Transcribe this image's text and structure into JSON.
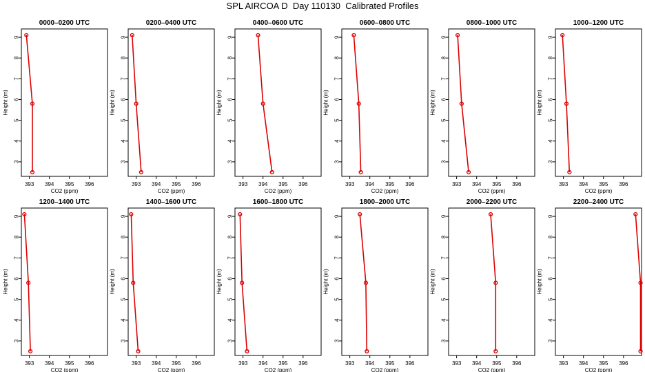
{
  "figure": {
    "title": "SPL AIRCOA D  Day 110130  Calibrated Profiles"
  },
  "colors": {
    "series": "#dd0000",
    "axis": "#000000"
  },
  "chart_data": [
    {
      "type": "line",
      "title": "0000–0200 UTC",
      "xlabel": "CO2 (ppm)",
      "ylabel": "Height (m)",
      "xlim": [
        392.6,
        396.9
      ],
      "ylim": [
        2.3,
        9.4
      ],
      "xticks": [
        393,
        394,
        395,
        396
      ],
      "yticks": [
        3,
        4,
        5,
        6,
        7,
        8,
        9
      ],
      "grid": false,
      "x": [
        392.85,
        393.15,
        393.15
      ],
      "y": [
        9.1,
        5.8,
        2.5
      ]
    },
    {
      "type": "line",
      "title": "0200–0400 UTC",
      "xlabel": "CO2 (ppm)",
      "ylabel": "Height (m)",
      "xlim": [
        392.6,
        396.9
      ],
      "ylim": [
        2.3,
        9.4
      ],
      "xticks": [
        393,
        394,
        395,
        396
      ],
      "yticks": [
        3,
        4,
        5,
        6,
        7,
        8,
        9
      ],
      "grid": false,
      "x": [
        392.8,
        393.0,
        393.25
      ],
      "y": [
        9.1,
        5.8,
        2.5
      ]
    },
    {
      "type": "line",
      "title": "0400–0600 UTC",
      "xlabel": "CO2 (ppm)",
      "ylabel": "Height (m)",
      "xlim": [
        392.6,
        396.9
      ],
      "ylim": [
        2.3,
        9.4
      ],
      "xticks": [
        393,
        394,
        395,
        396
      ],
      "yticks": [
        3,
        4,
        5,
        6,
        7,
        8,
        9
      ],
      "grid": false,
      "x": [
        393.75,
        394.0,
        394.45
      ],
      "y": [
        9.1,
        5.8,
        2.5
      ]
    },
    {
      "type": "line",
      "title": "0600–0800 UTC",
      "xlabel": "CO2 (ppm)",
      "ylabel": "Height (m)",
      "xlim": [
        392.6,
        396.9
      ],
      "ylim": [
        2.3,
        9.4
      ],
      "xticks": [
        393,
        394,
        395,
        396
      ],
      "yticks": [
        3,
        4,
        5,
        6,
        7,
        8,
        9
      ],
      "grid": false,
      "x": [
        393.2,
        393.45,
        393.55
      ],
      "y": [
        9.1,
        5.8,
        2.5
      ]
    },
    {
      "type": "line",
      "title": "0800–1000 UTC",
      "xlabel": "CO2 (ppm)",
      "ylabel": "Height (m)",
      "xlim": [
        392.6,
        396.9
      ],
      "ylim": [
        2.3,
        9.4
      ],
      "xticks": [
        393,
        394,
        395,
        396
      ],
      "yticks": [
        3,
        4,
        5,
        6,
        7,
        8,
        9
      ],
      "grid": false,
      "x": [
        393.05,
        393.25,
        393.6
      ],
      "y": [
        9.1,
        5.8,
        2.5
      ]
    },
    {
      "type": "line",
      "title": "1000–1200 UTC",
      "xlabel": "CO2 (ppm)",
      "ylabel": "Height (m)",
      "xlim": [
        392.6,
        396.9
      ],
      "ylim": [
        2.3,
        9.4
      ],
      "xticks": [
        393,
        394,
        395,
        396
      ],
      "yticks": [
        3,
        4,
        5,
        6,
        7,
        8,
        9
      ],
      "grid": false,
      "x": [
        392.95,
        393.15,
        393.3
      ],
      "y": [
        9.1,
        5.8,
        2.5
      ]
    },
    {
      "type": "line",
      "title": "1200–1400 UTC",
      "xlabel": "CO2 (ppm)",
      "ylabel": "Height (m)",
      "xlim": [
        392.6,
        396.9
      ],
      "ylim": [
        2.3,
        9.4
      ],
      "xticks": [
        393,
        394,
        395,
        396
      ],
      "yticks": [
        3,
        4,
        5,
        6,
        7,
        8,
        9
      ],
      "grid": false,
      "x": [
        392.75,
        392.95,
        393.05
      ],
      "y": [
        9.1,
        5.8,
        2.5
      ]
    },
    {
      "type": "line",
      "title": "1400–1600 UTC",
      "xlabel": "CO2 (ppm)",
      "ylabel": "Height (m)",
      "xlim": [
        392.6,
        396.9
      ],
      "ylim": [
        2.3,
        9.4
      ],
      "xticks": [
        393,
        394,
        395,
        396
      ],
      "yticks": [
        3,
        4,
        5,
        6,
        7,
        8,
        9
      ],
      "grid": false,
      "x": [
        392.75,
        392.85,
        393.1
      ],
      "y": [
        9.1,
        5.8,
        2.5
      ]
    },
    {
      "type": "line",
      "title": "1600–1800 UTC",
      "xlabel": "CO2 (ppm)",
      "ylabel": "Height (m)",
      "xlim": [
        392.6,
        396.9
      ],
      "ylim": [
        2.3,
        9.4
      ],
      "xticks": [
        393,
        394,
        395,
        396
      ],
      "yticks": [
        3,
        4,
        5,
        6,
        7,
        8,
        9
      ],
      "grid": false,
      "x": [
        392.85,
        392.95,
        393.2
      ],
      "y": [
        9.1,
        5.8,
        2.5
      ]
    },
    {
      "type": "line",
      "title": "1800–2000 UTC",
      "xlabel": "CO2 (ppm)",
      "ylabel": "Height (m)",
      "xlim": [
        392.6,
        396.9
      ],
      "ylim": [
        2.3,
        9.4
      ],
      "xticks": [
        393,
        394,
        395,
        396
      ],
      "yticks": [
        3,
        4,
        5,
        6,
        7,
        8,
        9
      ],
      "grid": false,
      "x": [
        393.5,
        393.8,
        393.85
      ],
      "y": [
        9.1,
        5.8,
        2.5
      ]
    },
    {
      "type": "line",
      "title": "2000–2200 UTC",
      "xlabel": "CO2 (ppm)",
      "ylabel": "Height (m)",
      "xlim": [
        392.6,
        396.9
      ],
      "ylim": [
        2.3,
        9.4
      ],
      "xticks": [
        393,
        394,
        395,
        396
      ],
      "yticks": [
        3,
        4,
        5,
        6,
        7,
        8,
        9
      ],
      "grid": false,
      "x": [
        394.7,
        394.95,
        394.95
      ],
      "y": [
        9.1,
        5.8,
        2.5
      ]
    },
    {
      "type": "line",
      "title": "2200–2400 UTC",
      "xlabel": "CO2 (ppm)",
      "ylabel": "Height (m)",
      "xlim": [
        392.6,
        396.9
      ],
      "ylim": [
        2.3,
        9.4
      ],
      "xticks": [
        393,
        394,
        395,
        396
      ],
      "yticks": [
        3,
        4,
        5,
        6,
        7,
        8,
        9
      ],
      "grid": false,
      "x": [
        396.6,
        396.85,
        396.85
      ],
      "y": [
        9.1,
        5.8,
        2.5
      ]
    }
  ]
}
